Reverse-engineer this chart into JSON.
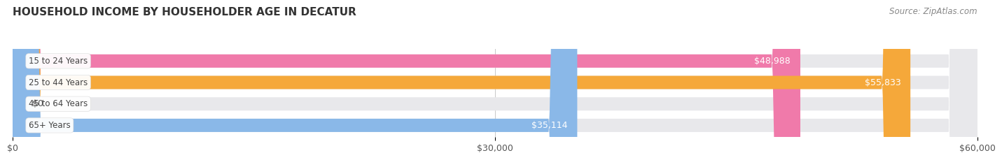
{
  "title": "HOUSEHOLD INCOME BY HOUSEHOLDER AGE IN DECATUR",
  "source": "Source: ZipAtlas.com",
  "categories": [
    "15 to 24 Years",
    "25 to 44 Years",
    "45 to 64 Years",
    "65+ Years"
  ],
  "values": [
    48988,
    55833,
    0,
    35114
  ],
  "bar_colors": [
    "#f07aaa",
    "#f5a83a",
    "#f0a0a0",
    "#8ab8e8"
  ],
  "bar_bg_color": "#e8e8eb",
  "xlim": [
    0,
    60000
  ],
  "xticks": [
    0,
    30000,
    60000
  ],
  "xticklabels": [
    "$0",
    "$30,000",
    "$60,000"
  ],
  "value_labels": [
    "$48,988",
    "$55,833",
    "$0",
    "$35,114"
  ],
  "title_fontsize": 11,
  "source_fontsize": 8.5,
  "tick_fontsize": 9,
  "bar_label_fontsize": 9,
  "category_fontsize": 8.5,
  "background_color": "#ffffff"
}
